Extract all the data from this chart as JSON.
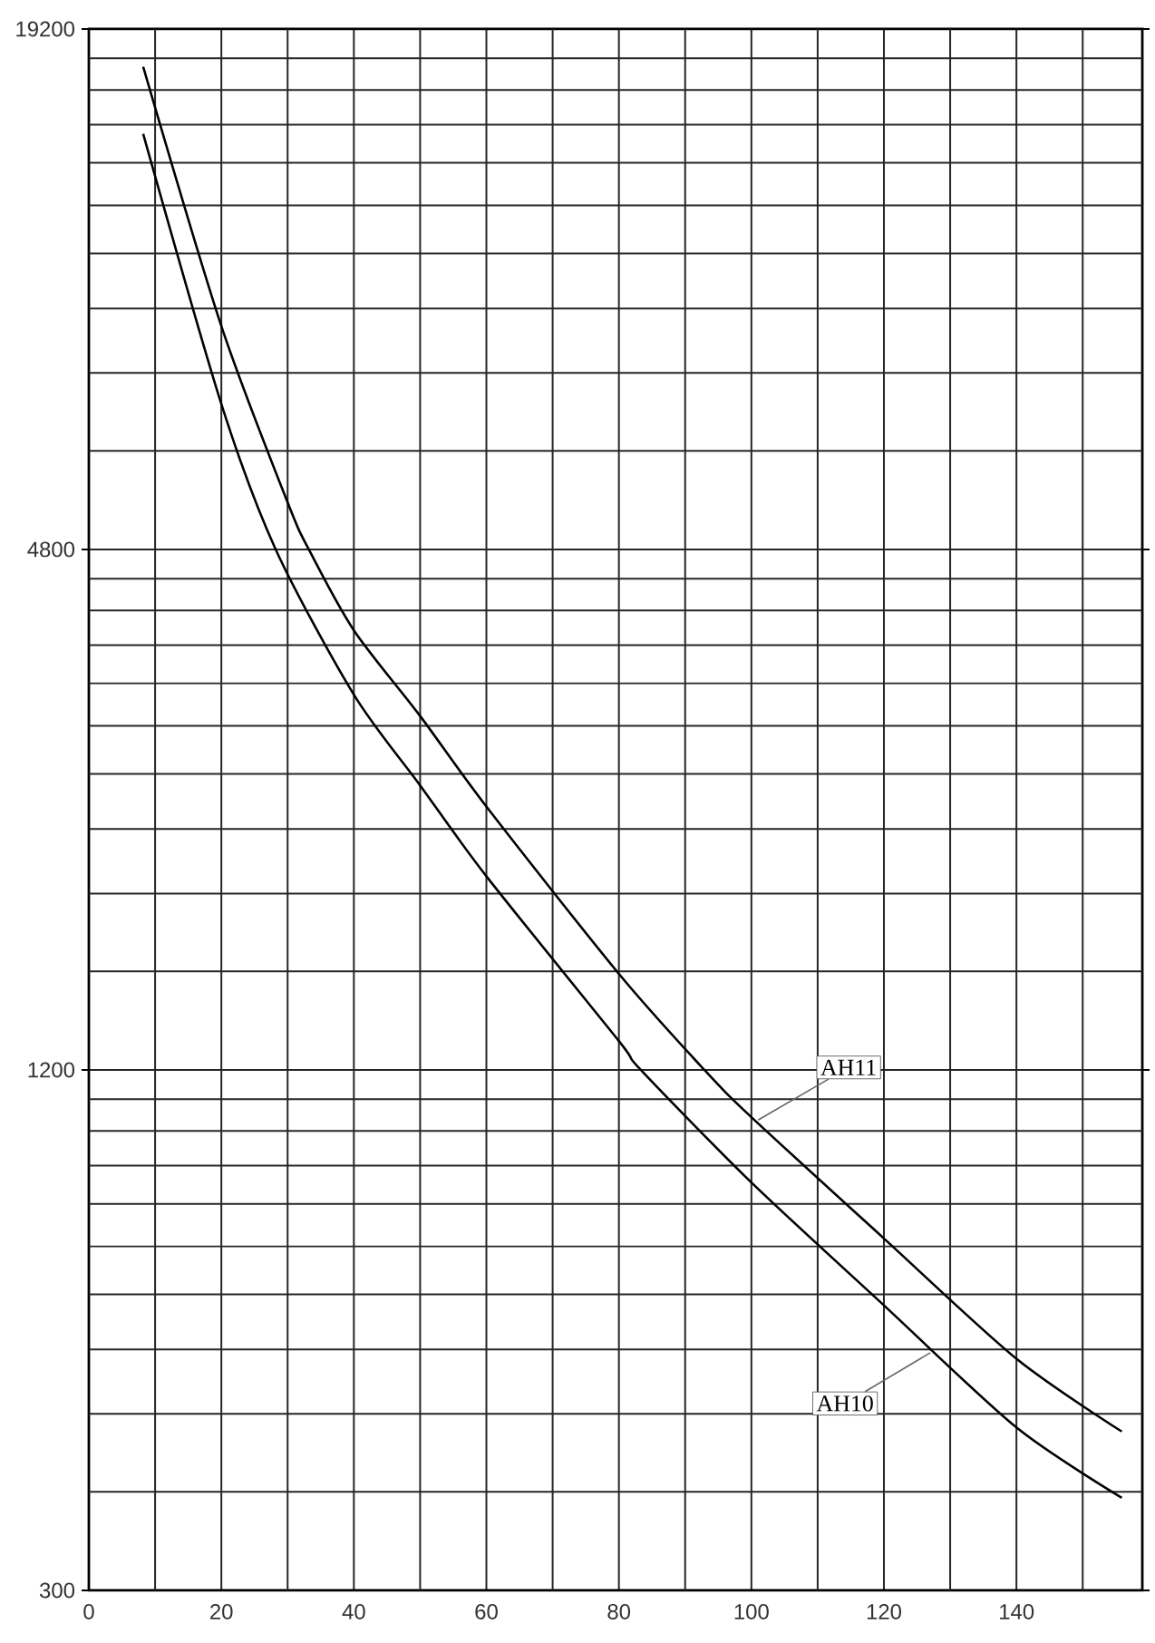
{
  "chart_data": {
    "type": "line",
    "log": "y",
    "grid": true,
    "line_style": "solid",
    "xlim": [
      0,
      159
    ],
    "xticks": [
      0,
      {
        "value": 10,
        "label": null
      },
      20,
      {
        "value": 30,
        "label": null
      },
      40,
      {
        "value": 50,
        "label": null
      },
      60,
      {
        "value": 70,
        "label": null
      },
      80,
      {
        "value": 90,
        "label": null
      },
      100,
      {
        "value": 110,
        "label": null
      },
      120,
      {
        "value": 130,
        "label": null
      },
      140,
      {
        "value": 150,
        "label": null
      }
    ],
    "ylim": [
      300,
      19200
    ],
    "yticks": [
      300,
      {
        "value": 390,
        "label": null
      },
      {
        "value": 480,
        "label": null
      },
      {
        "value": 570,
        "label": null
      },
      {
        "value": 660,
        "label": null
      },
      {
        "value": 750,
        "label": null
      },
      {
        "value": 840,
        "label": null
      },
      {
        "value": 930,
        "label": null
      },
      {
        "value": 1020,
        "label": null
      },
      {
        "value": 1110,
        "label": null
      },
      1200,
      {
        "value": 1560,
        "label": null
      },
      {
        "value": 1920,
        "label": null
      },
      {
        "value": 2280,
        "label": null
      },
      {
        "value": 2640,
        "label": null
      },
      {
        "value": 3000,
        "label": null
      },
      {
        "value": 3360,
        "label": null
      },
      {
        "value": 3720,
        "label": null
      },
      {
        "value": 4080,
        "label": null
      },
      {
        "value": 4440,
        "label": null
      },
      4800,
      {
        "value": 6240,
        "label": null
      },
      {
        "value": 7680,
        "label": null
      },
      {
        "value": 9120,
        "label": null
      },
      {
        "value": 10560,
        "label": null
      },
      {
        "value": 12000,
        "label": null
      },
      {
        "value": 13440,
        "label": null
      },
      {
        "value": 14880,
        "label": null
      },
      {
        "value": 16320,
        "label": null
      },
      {
        "value": 17760,
        "label": null
      },
      19200
    ],
    "series": [
      {
        "color": "#000000",
        "x": [
          8.2,
          20,
          30,
          33.2,
          40,
          50,
          60,
          80,
          92.9,
          100,
          120,
          140,
          155.9
        ],
        "values": [
          17360,
          8700,
          5440,
          4800,
          3870,
          3080,
          2420,
          1550,
          1200,
          1058,
          766,
          556,
          458
        ]
      },
      {
        "color": "#000000",
        "x": [
          8.2,
          20,
          28.2,
          40,
          50,
          60,
          80,
          83.3,
          100,
          120,
          140,
          155.9
        ],
        "values": [
          14520,
          7070,
          4800,
          3260,
          2560,
          2010,
          1296,
          1200,
          889,
          641,
          463,
          384
        ]
      }
    ],
    "annotations": [
      {
        "text": "AH11",
        "x": 101,
        "y": 1050
      },
      {
        "text": "AH10",
        "x": 127,
        "y": 565
      }
    ]
  }
}
